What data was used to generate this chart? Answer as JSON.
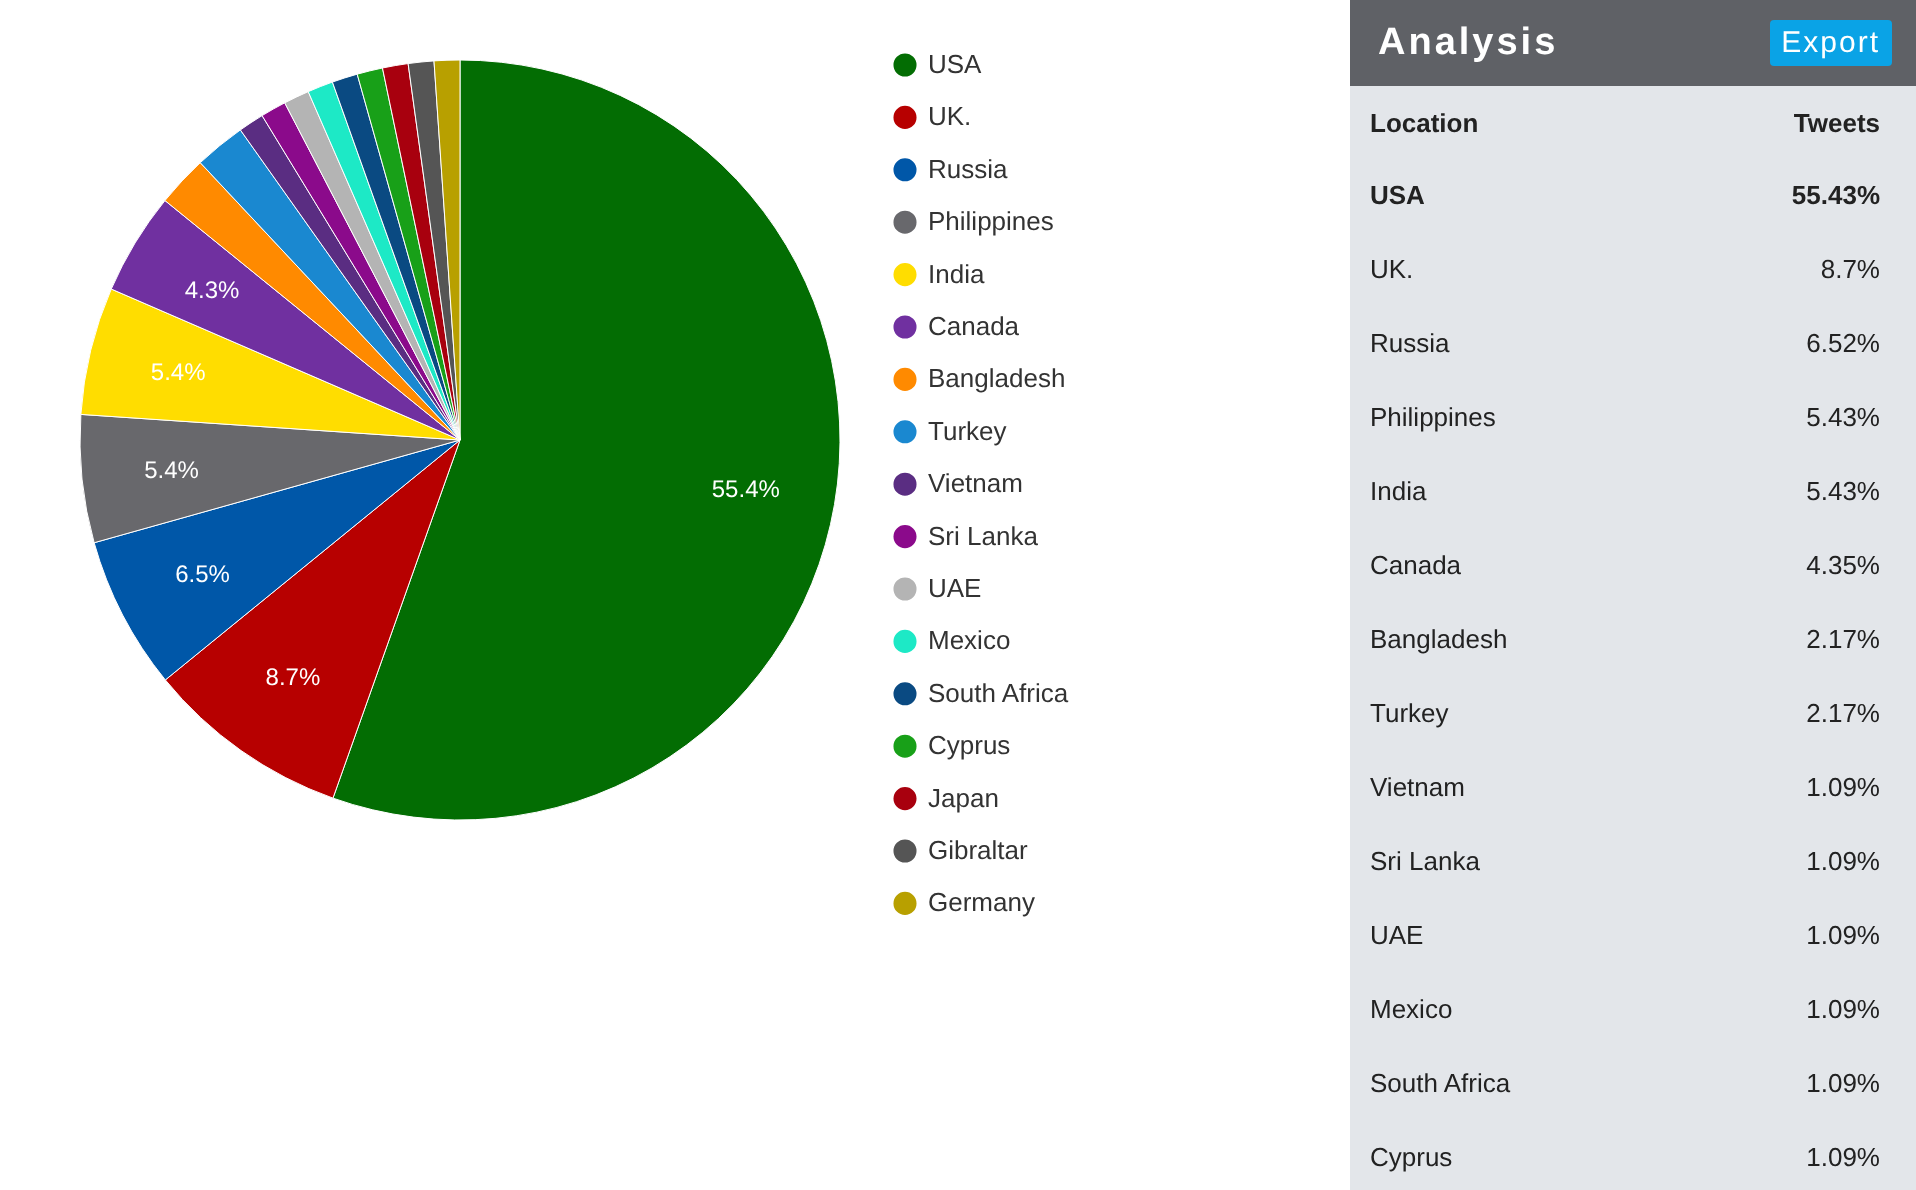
{
  "chart_data": [
    {
      "type": "pie",
      "categories": [
        "USA",
        "UK.",
        "Russia",
        "Philippines",
        "India",
        "Canada",
        "Bangladesh",
        "Turkey",
        "Vietnam",
        "Sri Lanka",
        "UAE",
        "Mexico",
        "South Africa",
        "Cyprus",
        "Japan",
        "Gibraltar",
        "Germany"
      ],
      "values": [
        55.43,
        8.7,
        6.52,
        5.43,
        5.43,
        4.35,
        2.17,
        2.17,
        1.09,
        1.09,
        1.09,
        1.09,
        1.09,
        1.09,
        1.09,
        1.09,
        1.09
      ],
      "colors": [
        "#036d03",
        "#b70000",
        "#0057a8",
        "#68686c",
        "#ffdd00",
        "#7030a0",
        "#ff8a00",
        "#1a88d0",
        "#5a2d82",
        "#8b0a8b",
        "#b4b4b4",
        "#1de9c6",
        "#0a4a82",
        "#18a018",
        "#a8000e",
        "#555555",
        "#b8a000"
      ],
      "value_labels": [
        "55.4%",
        "8.7%",
        "6.5%",
        "5.4%",
        "5.4%",
        "4.3%",
        null,
        null,
        null,
        null,
        null,
        null,
        null,
        null,
        null,
        null,
        null
      ],
      "legend": "right"
    },
    {
      "type": "other",
      "title": "Analysis",
      "annotations": [
        "Export"
      ],
      "xlabel": "Location",
      "ylabel": "Tweets",
      "categories": [
        "USA",
        "UK.",
        "Russia",
        "Philippines",
        "India",
        "Canada",
        "Bangladesh",
        "Turkey",
        "Vietnam",
        "Sri Lanka",
        "UAE",
        "Mexico",
        "South Africa",
        "Cyprus"
      ],
      "values": [
        55.43,
        8.7,
        6.52,
        5.43,
        5.43,
        4.35,
        2.17,
        2.17,
        1.09,
        1.09,
        1.09,
        1.09,
        1.09,
        1.09
      ],
      "value_labels": [
        "55.43%",
        "8.7%",
        "6.52%",
        "5.43%",
        "5.43%",
        "4.35%",
        "2.17%",
        "2.17%",
        "1.09%",
        "1.09%",
        "1.09%",
        "1.09%",
        "1.09%",
        "1.09%"
      ]
    }
  ]
}
